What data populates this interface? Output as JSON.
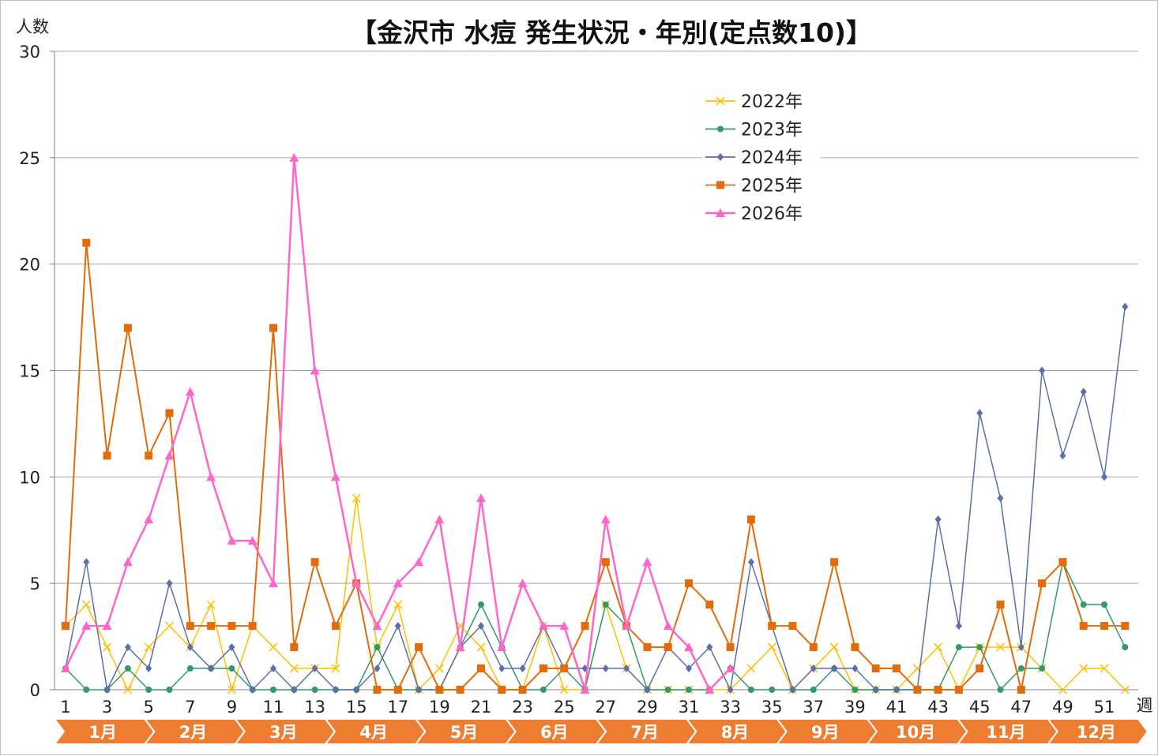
{
  "chart_data": {
    "type": "line",
    "title": "【金沢市 水痘 発生状況・年別(定点数10)】",
    "ylabel": "人数",
    "xlabel": "週",
    "ylim": [
      0,
      30
    ],
    "yticks": [
      0,
      5,
      10,
      15,
      20,
      25,
      30
    ],
    "xlim": [
      1,
      52
    ],
    "xticks": [
      1,
      3,
      5,
      7,
      9,
      11,
      13,
      15,
      17,
      19,
      21,
      23,
      25,
      27,
      29,
      31,
      33,
      35,
      37,
      39,
      41,
      43,
      45,
      47,
      49,
      51
    ],
    "grid": "horizontal",
    "legend_position": "top-center-right",
    "months": [
      "1月",
      "2月",
      "3月",
      "4月",
      "5月",
      "6月",
      "7月",
      "8月",
      "9月",
      "10月",
      "11月",
      "12月"
    ],
    "month_band_color": "#ed7d31",
    "series": [
      {
        "name": "2022年",
        "color": "#ffc000",
        "marker": "x",
        "values": [
          3,
          4,
          2,
          0,
          2,
          3,
          2,
          4,
          0,
          3,
          2,
          1,
          1,
          1,
          9,
          2,
          4,
          0,
          1,
          3,
          2,
          0,
          0,
          3,
          0,
          0,
          4,
          1,
          0,
          0,
          0,
          0,
          0,
          1,
          2,
          0,
          1,
          2,
          0,
          0,
          0,
          1,
          2,
          0,
          2,
          2,
          2,
          1,
          0,
          1,
          1,
          0
        ]
      },
      {
        "name": "2023年",
        "color": "#339966",
        "marker": "circle",
        "values": [
          1,
          0,
          0,
          1,
          0,
          0,
          1,
          1,
          1,
          0,
          0,
          0,
          0,
          0,
          0,
          2,
          0,
          0,
          0,
          2,
          4,
          2,
          0,
          0,
          1,
          0,
          4,
          3,
          0,
          0,
          0,
          0,
          1,
          0,
          0,
          0,
          0,
          1,
          0,
          0,
          0,
          0,
          0,
          2,
          2,
          0,
          1,
          1,
          6,
          4,
          4,
          2
        ]
      },
      {
        "name": "2024年",
        "color": "#5b6fa8",
        "marker": "diamond",
        "values": [
          1,
          6,
          0,
          2,
          1,
          5,
          2,
          1,
          2,
          0,
          1,
          0,
          1,
          0,
          0,
          1,
          3,
          0,
          0,
          2,
          3,
          1,
          1,
          3,
          1,
          1,
          1,
          1,
          0,
          2,
          1,
          2,
          0,
          6,
          3,
          0,
          1,
          1,
          1,
          0,
          0,
          0,
          8,
          3,
          13,
          9,
          2,
          15,
          11,
          14,
          10,
          18
        ]
      },
      {
        "name": "2025年",
        "color": "#e36c0a",
        "marker": "square",
        "values": [
          3,
          21,
          11,
          17,
          11,
          13,
          3,
          3,
          3,
          3,
          17,
          2,
          6,
          3,
          5,
          0,
          0,
          2,
          0,
          0,
          1,
          0,
          0,
          1,
          1,
          3,
          6,
          3,
          2,
          2,
          5,
          4,
          2,
          8,
          3,
          3,
          2,
          6,
          2,
          1,
          1,
          0,
          0,
          0,
          1,
          4,
          0,
          5,
          6,
          3,
          3,
          3
        ]
      },
      {
        "name": "2026年",
        "color": "#ff66cc",
        "marker": "triangle",
        "values": [
          1,
          3,
          3,
          6,
          8,
          11,
          14,
          10,
          7,
          7,
          5,
          25,
          15,
          10,
          5,
          3,
          5,
          6,
          8,
          2,
          9,
          2,
          5,
          3,
          3,
          0,
          8,
          3,
          6,
          3,
          2,
          0,
          1
        ]
      }
    ]
  }
}
